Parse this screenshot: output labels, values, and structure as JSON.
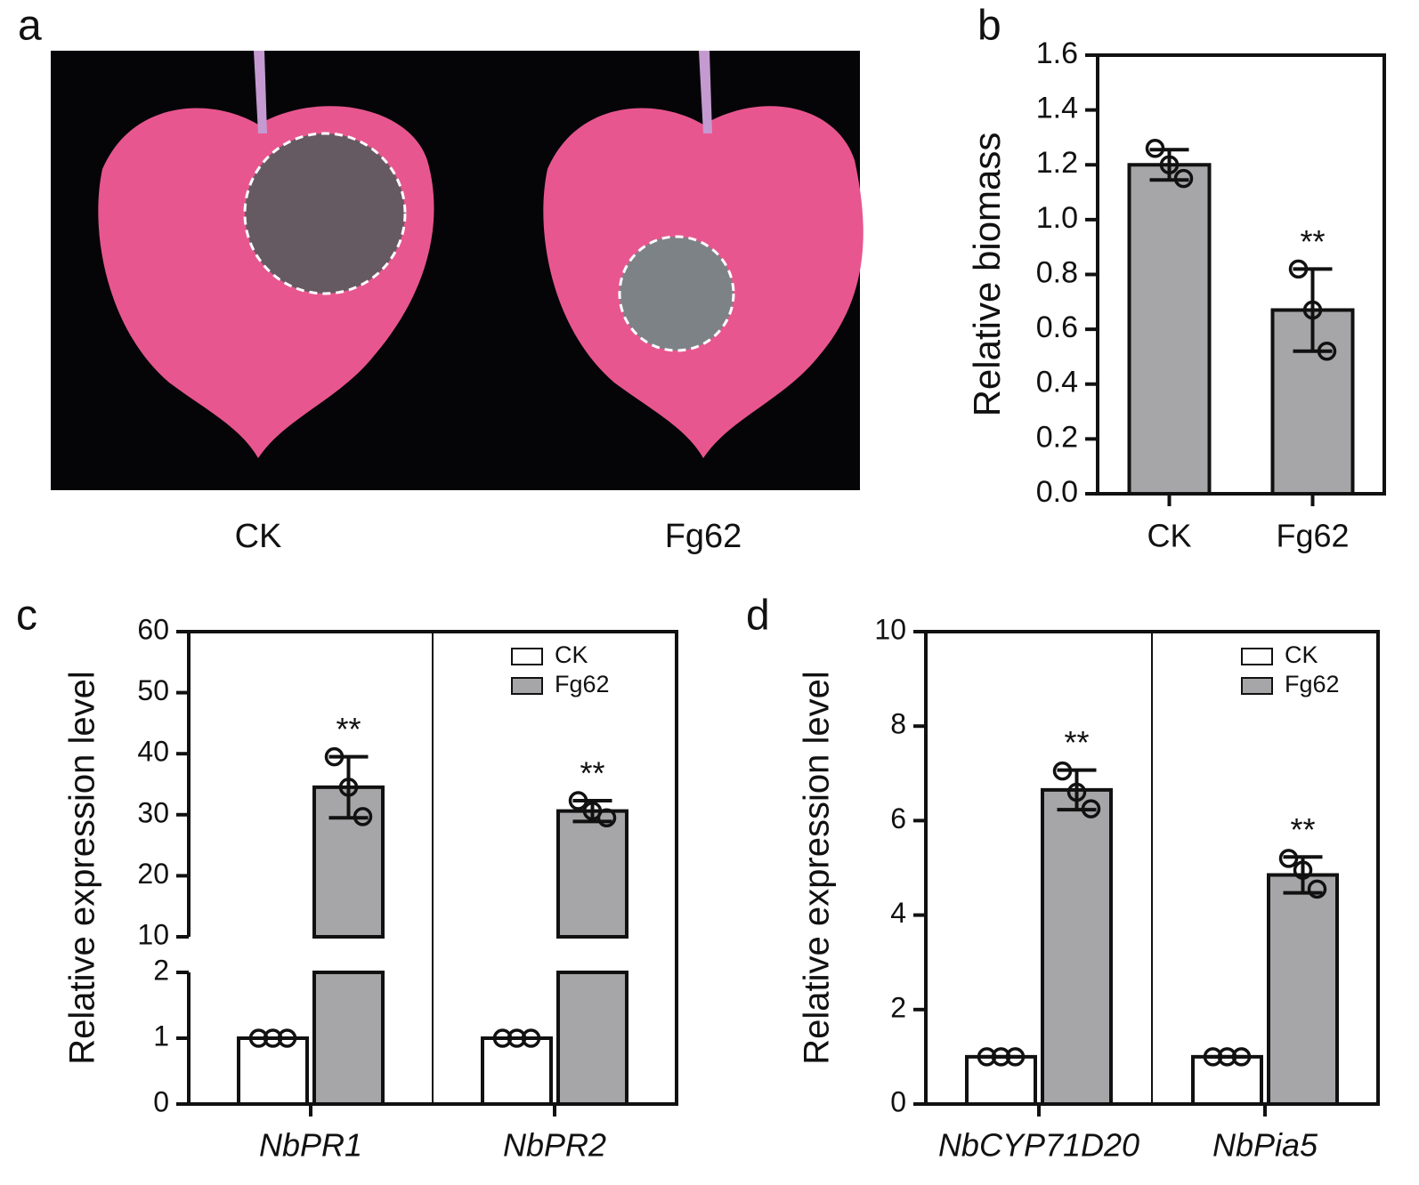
{
  "panel_a": {
    "label": "a",
    "captions": [
      "CK",
      "Fg62"
    ]
  },
  "chart_data": [
    {
      "type": "bar",
      "panel_label": "b",
      "y_label": "Relative biomass",
      "categories": [
        "CK",
        "Fg62"
      ],
      "values": [
        1.2,
        0.67
      ],
      "errors": [
        0.055,
        0.15
      ],
      "points": [
        [
          1.26,
          1.2,
          1.15
        ],
        [
          0.82,
          0.67,
          0.52
        ]
      ],
      "significance": [
        null,
        "**"
      ],
      "color": "#a6a6a8",
      "ylim": [
        0,
        1.6
      ],
      "yticks": [
        {
          "value": 0,
          "label": "0.0"
        },
        0.2,
        0.4,
        0.6,
        0.8,
        {
          "value": 1,
          "label": "1.0"
        },
        1.2,
        1.4,
        1.6
      ]
    },
    {
      "type": "grouped_bar",
      "panel_label": "c",
      "y_label": "Relative expression level",
      "categories": [
        "NbPR1",
        "NbPR2"
      ],
      "series": [
        {
          "name": "CK",
          "color": "#ffffff",
          "values": [
            1,
            1
          ],
          "errors": [
            0,
            0
          ],
          "points": [
            [
              1,
              1,
              1
            ],
            [
              1,
              1,
              1
            ]
          ]
        },
        {
          "name": "Fg62",
          "color": "#a6a6a8",
          "values": [
            34.5,
            30.6
          ],
          "errors": [
            5,
            1.7
          ],
          "points": [
            [
              39.5,
              34.5,
              29.7
            ],
            [
              32.3,
              30.6,
              29.5
            ]
          ],
          "significance": [
            "**",
            "**"
          ]
        }
      ],
      "ylim": [
        0,
        60
      ],
      "ybreak": [
        2,
        10
      ],
      "yticks": [
        0,
        1,
        2,
        10,
        20,
        30,
        40,
        50,
        60
      ],
      "legend": "upper right"
    },
    {
      "type": "grouped_bar",
      "panel_label": "d",
      "y_label": "Relative expression level",
      "categories": [
        "NbCYP71D20",
        "NbPia5"
      ],
      "series": [
        {
          "name": "CK",
          "color": "#ffffff",
          "values": [
            1,
            1
          ],
          "errors": [
            0,
            0
          ],
          "points": [
            [
              1,
              1,
              1
            ],
            [
              1,
              1,
              1
            ]
          ]
        },
        {
          "name": "Fg62",
          "color": "#a6a6a8",
          "values": [
            6.65,
            4.85
          ],
          "errors": [
            0.42,
            0.38
          ],
          "points": [
            [
              7.05,
              6.6,
              6.25
            ],
            [
              5.2,
              4.95,
              4.55
            ]
          ],
          "significance": [
            "**",
            "**"
          ]
        }
      ],
      "ylim": [
        0,
        10
      ],
      "yticks": [
        0,
        2,
        4,
        6,
        8,
        10
      ],
      "legend": "upper right"
    }
  ]
}
